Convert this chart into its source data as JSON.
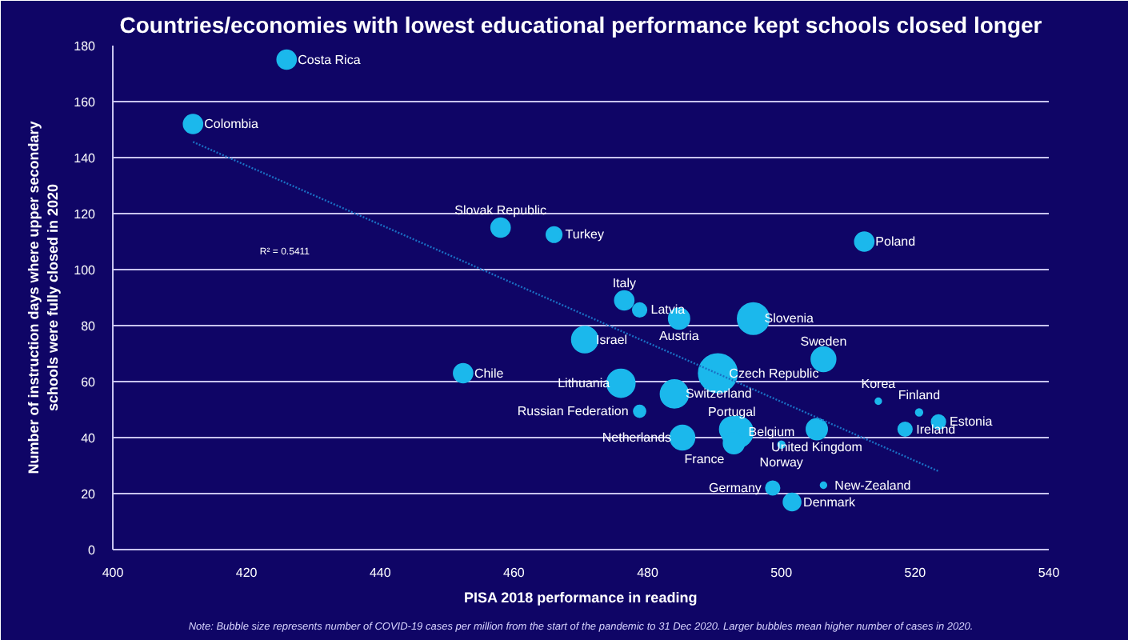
{
  "chart_data": {
    "type": "bubble",
    "title": "Countries/economies with lowest educational performance kept schools closed longer",
    "xlabel": "PISA 2018 performance in reading",
    "ylabel": "Number of instruction days where upper secondary schools were fully closed in 2020",
    "xlim": [
      400,
      540
    ],
    "xticks": [
      400,
      420,
      440,
      460,
      480,
      500,
      520,
      540
    ],
    "ylim": [
      0,
      180
    ],
    "yticks": [
      0,
      20,
      40,
      60,
      80,
      100,
      120,
      140,
      160,
      180
    ],
    "grid": "y",
    "series": [
      {
        "color": "#1bb8ec",
        "x": [
          426,
          412,
          458,
          466,
          476.5,
          478.8,
          484.7,
          495.8,
          470.6,
          452.4,
          506.3,
          490.5,
          476,
          484,
          514.5,
          520.6,
          512.4,
          523.5,
          518.5,
          478.8,
          485.2,
          492.6,
          493.4,
          492.9,
          500,
          505.3,
          498.7,
          506.3,
          501.6
        ],
        "values": [
          175,
          152,
          115,
          112.5,
          89,
          85.6,
          82.5,
          82.5,
          75,
          63,
          68,
          63,
          59.4,
          55.6,
          53,
          49,
          110,
          45.6,
          43,
          49.4,
          40,
          43,
          42,
          38,
          37.5,
          43,
          22,
          23,
          17
        ],
        "sizes": [
          0.2,
          0.2,
          0.2,
          0.12,
          0.2,
          0.09,
          0.25,
          0.64,
          0.42,
          0.2,
          0.36,
          1,
          0.49,
          0.49,
          0.006,
          0.01,
          0.2,
          0.09,
          0.09,
          0.06,
          0.36,
          0.36,
          0.64,
          0.25,
          0.01,
          0.25,
          0.09,
          0.006,
          0.16
        ]
      },
      {
        "type": "line",
        "color": "#1a6fc4",
        "line_style": "dotted",
        "marker": "none",
        "x": [
          412,
          523.5
        ],
        "values": [
          145.6,
          28
        ]
      }
    ],
    "annotations": [
      {
        "text": "Costa Rica",
        "x": 426,
        "y": 175
      },
      {
        "text": "Colombia",
        "x": 412,
        "y": 152
      },
      {
        "text": "Slovak Republic",
        "x": 458,
        "y": 115
      },
      {
        "text": "Turkey",
        "x": 466,
        "y": 112.5
      },
      {
        "text": "Italy",
        "x": 476.5,
        "y": 89
      },
      {
        "text": "Latvia",
        "x": 478.8,
        "y": 85.6
      },
      {
        "text": "Austria",
        "x": 484.7,
        "y": 82.5
      },
      {
        "text": "Slovenia",
        "x": 495.8,
        "y": 82.5
      },
      {
        "text": "Israel",
        "x": 470.6,
        "y": 75
      },
      {
        "text": "Chile",
        "x": 452.4,
        "y": 63
      },
      {
        "text": "Sweden",
        "x": 506.3,
        "y": 68
      },
      {
        "text": "Czech Republic",
        "x": 490.5,
        "y": 63
      },
      {
        "text": "Lithuania",
        "x": 476,
        "y": 59.4
      },
      {
        "text": "Switzerland",
        "x": 484,
        "y": 55.6
      },
      {
        "text": "Korea",
        "x": 514.5,
        "y": 53
      },
      {
        "text": "Finland",
        "x": 520.6,
        "y": 49
      },
      {
        "text": "Poland",
        "x": 512.4,
        "y": 110
      },
      {
        "text": "Estonia",
        "x": 523.5,
        "y": 45.6
      },
      {
        "text": "Ireland",
        "x": 518.5,
        "y": 43
      },
      {
        "text": "Russian Federation",
        "x": 478.8,
        "y": 49.4
      },
      {
        "text": "Netherlands",
        "x": 485.2,
        "y": 40
      },
      {
        "text": "Portugal",
        "x": 492.6,
        "y": 43
      },
      {
        "text": "Belgium",
        "x": 493.4,
        "y": 42
      },
      {
        "text": "France",
        "x": 492.9,
        "y": 38
      },
      {
        "text": "Norway",
        "x": 500,
        "y": 37.5
      },
      {
        "text": "United Kingdom",
        "x": 505.3,
        "y": 43
      },
      {
        "text": "Germany",
        "x": 498.7,
        "y": 22
      },
      {
        "text": "New-Zealand",
        "x": 506.3,
        "y": 23
      },
      {
        "text": "Denmark",
        "x": 501.6,
        "y": 17
      },
      "R² = 0.5411",
      "Note: Bubble size represents number of COVID-19 cases per million from the start of the pandemic to 31 Dec 2020. Larger bubbles mean higher number of cases in 2020."
    ]
  }
}
